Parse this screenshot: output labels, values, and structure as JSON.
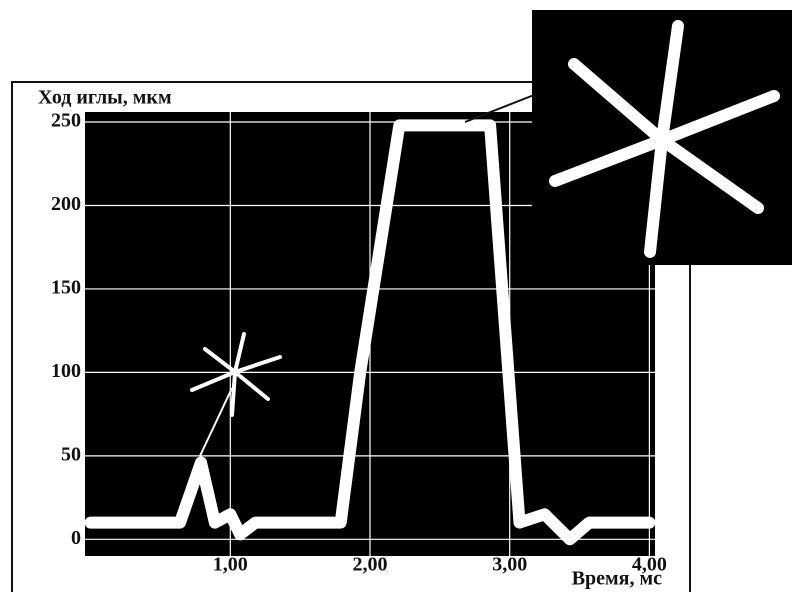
{
  "chart_data": {
    "type": "line",
    "y_label": "Ход иглы, мкм",
    "x_label": "Время, мс",
    "x": [
      0,
      0.64,
      0.79,
      0.89,
      1.0,
      1.07,
      1.18,
      1.79,
      1.93,
      2.21,
      2.86,
      3.07,
      3.25,
      3.43,
      3.57,
      4.0
    ],
    "values": [
      10,
      10,
      46,
      10,
      15,
      3,
      10,
      10,
      100,
      248,
      248,
      10,
      15,
      0,
      10,
      10
    ],
    "color": "#ffffff",
    "xlim": [
      -0.04,
      4.04
    ],
    "ylim": [
      -10,
      256
    ],
    "xticks": [
      {
        "value": 1,
        "label": "1,00"
      },
      {
        "value": 2,
        "label": "2,00"
      },
      {
        "value": 3,
        "label": "3,00"
      },
      {
        "value": 4,
        "label": "4,00"
      }
    ],
    "yticks": [
      0,
      50,
      100,
      150,
      200,
      250
    ],
    "grid": true
  }
}
